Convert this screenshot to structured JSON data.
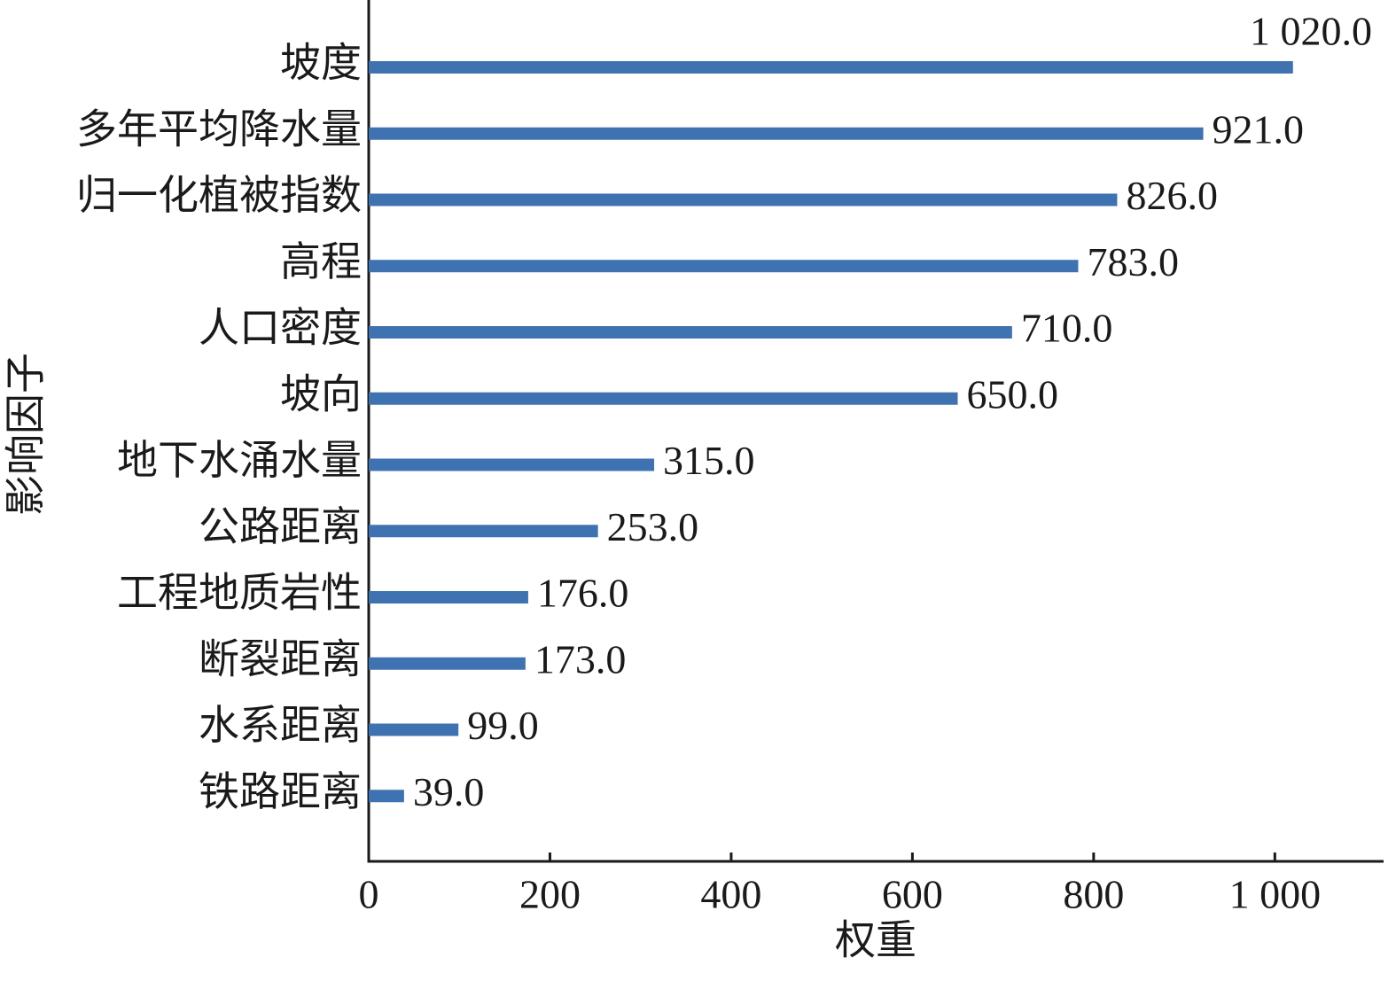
{
  "chart_data": {
    "type": "hbar",
    "x_label": "权重",
    "y_label": "影响因子",
    "categories": [
      "坡度",
      "多年平均降水量",
      "归一化植被指数",
      "高程",
      "人口密度",
      "坡向",
      "地下水涌水量",
      "公路距离",
      "工程地质岩性",
      "断裂距离",
      "水系距离",
      "铁路距离"
    ],
    "values": [
      1020,
      921,
      826,
      783,
      710,
      650,
      315,
      253,
      176,
      173,
      99,
      39
    ],
    "value_labels": [
      "1 020.0",
      "921.0",
      "826.0",
      "783.0",
      "710.0",
      "650.0",
      "315.0",
      "253.0",
      "176.0",
      "173.0",
      "99.0",
      "39.0"
    ],
    "color": "#3f72b0",
    "xlim": [
      0,
      1120
    ],
    "xticks": [
      0,
      200,
      400,
      600,
      800,
      {
        "value": 1000,
        "label": "1 000"
      }
    ]
  }
}
